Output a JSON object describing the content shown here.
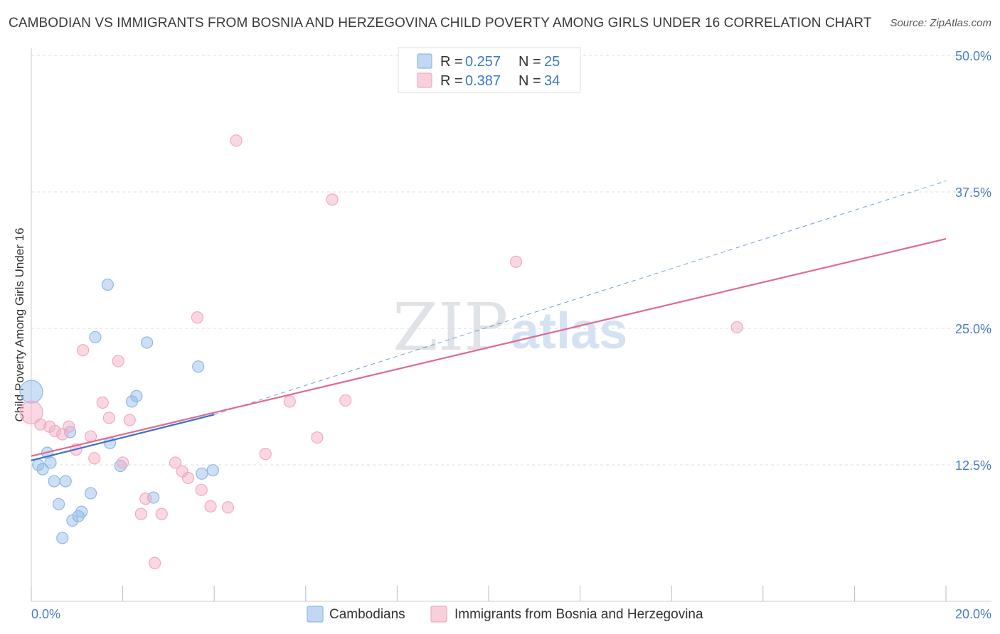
{
  "title": "CAMBODIAN VS IMMIGRANTS FROM BOSNIA AND HERZEGOVINA CHILD POVERTY AMONG GIRLS UNDER 16 CORRELATION CHART",
  "source": "Source: ZipAtlas.com",
  "watermark": {
    "part1": "ZIP",
    "part2": "atlas"
  },
  "chart_data": {
    "type": "scatter",
    "ylabel": "Child Poverty Among Girls Under 16",
    "xlim": [
      0,
      20
    ],
    "ylim": [
      0,
      50
    ],
    "x_tick_labels": [
      "0.0%",
      "20.0%"
    ],
    "y_ticks": [
      12.5,
      25.0,
      37.5,
      50.0
    ],
    "y_tick_labels": [
      "12.5%",
      "25.0%",
      "37.5%",
      "50.0%"
    ],
    "legend": {
      "r_label": "R =",
      "n_label": "N =",
      "entries": [
        {
          "r": "0.257",
          "n": "25"
        },
        {
          "r": "0.387",
          "n": "34"
        }
      ]
    },
    "series": [
      {
        "name": "Cambodians",
        "color": "#8fb8e8",
        "line_color": "#3575cc",
        "trend_solid": {
          "x": [
            0.0,
            4.0
          ],
          "y": [
            12.9,
            17.1
          ]
        },
        "trend_dashed": {
          "x": [
            4.0,
            20.0
          ],
          "y": [
            17.1,
            38.5
          ]
        },
        "points": [
          {
            "x": 0.0,
            "y": 19.2,
            "size": "large"
          },
          {
            "x": 0.15,
            "y": 12.5
          },
          {
            "x": 0.25,
            "y": 12.1
          },
          {
            "x": 0.35,
            "y": 13.6
          },
          {
            "x": 0.42,
            "y": 12.7
          },
          {
            "x": 0.5,
            "y": 11.0
          },
          {
            "x": 0.6,
            "y": 8.9
          },
          {
            "x": 0.68,
            "y": 5.8
          },
          {
            "x": 0.75,
            "y": 11.0
          },
          {
            "x": 0.85,
            "y": 15.5
          },
          {
            "x": 0.9,
            "y": 7.4
          },
          {
            "x": 1.03,
            "y": 7.8
          },
          {
            "x": 1.1,
            "y": 8.2
          },
          {
            "x": 1.3,
            "y": 9.9
          },
          {
            "x": 1.4,
            "y": 24.2
          },
          {
            "x": 1.67,
            "y": 29.0
          },
          {
            "x": 1.72,
            "y": 14.5
          },
          {
            "x": 1.95,
            "y": 12.4
          },
          {
            "x": 2.2,
            "y": 18.3
          },
          {
            "x": 2.3,
            "y": 18.8
          },
          {
            "x": 2.53,
            "y": 23.7
          },
          {
            "x": 2.67,
            "y": 9.5
          },
          {
            "x": 3.65,
            "y": 21.5
          },
          {
            "x": 3.73,
            "y": 11.7
          },
          {
            "x": 3.97,
            "y": 12.0
          }
        ]
      },
      {
        "name": "Immigrants from Bosnia and Herzegovina",
        "color": "#f4a8c0",
        "line_color": "#e06a93",
        "trend_solid": {
          "x": [
            0.0,
            20.0
          ],
          "y": [
            13.3,
            33.2
          ]
        },
        "points": [
          {
            "x": 0.0,
            "y": 17.3,
            "size": "large"
          },
          {
            "x": 0.2,
            "y": 16.2
          },
          {
            "x": 0.4,
            "y": 16.0
          },
          {
            "x": 0.52,
            "y": 15.6
          },
          {
            "x": 0.68,
            "y": 15.3
          },
          {
            "x": 0.82,
            "y": 16.0
          },
          {
            "x": 0.98,
            "y": 13.9
          },
          {
            "x": 1.13,
            "y": 23.0
          },
          {
            "x": 1.3,
            "y": 15.1
          },
          {
            "x": 1.38,
            "y": 13.1
          },
          {
            "x": 1.56,
            "y": 18.2
          },
          {
            "x": 1.7,
            "y": 16.8
          },
          {
            "x": 1.9,
            "y": 22.0
          },
          {
            "x": 2.0,
            "y": 12.7
          },
          {
            "x": 2.15,
            "y": 16.6
          },
          {
            "x": 2.4,
            "y": 8.0
          },
          {
            "x": 2.5,
            "y": 9.4
          },
          {
            "x": 2.7,
            "y": 3.5
          },
          {
            "x": 2.85,
            "y": 8.0
          },
          {
            "x": 3.15,
            "y": 12.7
          },
          {
            "x": 3.3,
            "y": 11.9
          },
          {
            "x": 3.43,
            "y": 11.3
          },
          {
            "x": 3.63,
            "y": 26.0
          },
          {
            "x": 3.72,
            "y": 10.2
          },
          {
            "x": 3.92,
            "y": 8.7
          },
          {
            "x": 4.3,
            "y": 8.6
          },
          {
            "x": 4.48,
            "y": 42.2
          },
          {
            "x": 5.12,
            "y": 13.5
          },
          {
            "x": 5.65,
            "y": 18.3
          },
          {
            "x": 6.25,
            "y": 15.0
          },
          {
            "x": 6.58,
            "y": 36.8
          },
          {
            "x": 6.87,
            "y": 18.4
          },
          {
            "x": 10.6,
            "y": 31.1
          },
          {
            "x": 15.43,
            "y": 25.1
          }
        ]
      }
    ]
  }
}
